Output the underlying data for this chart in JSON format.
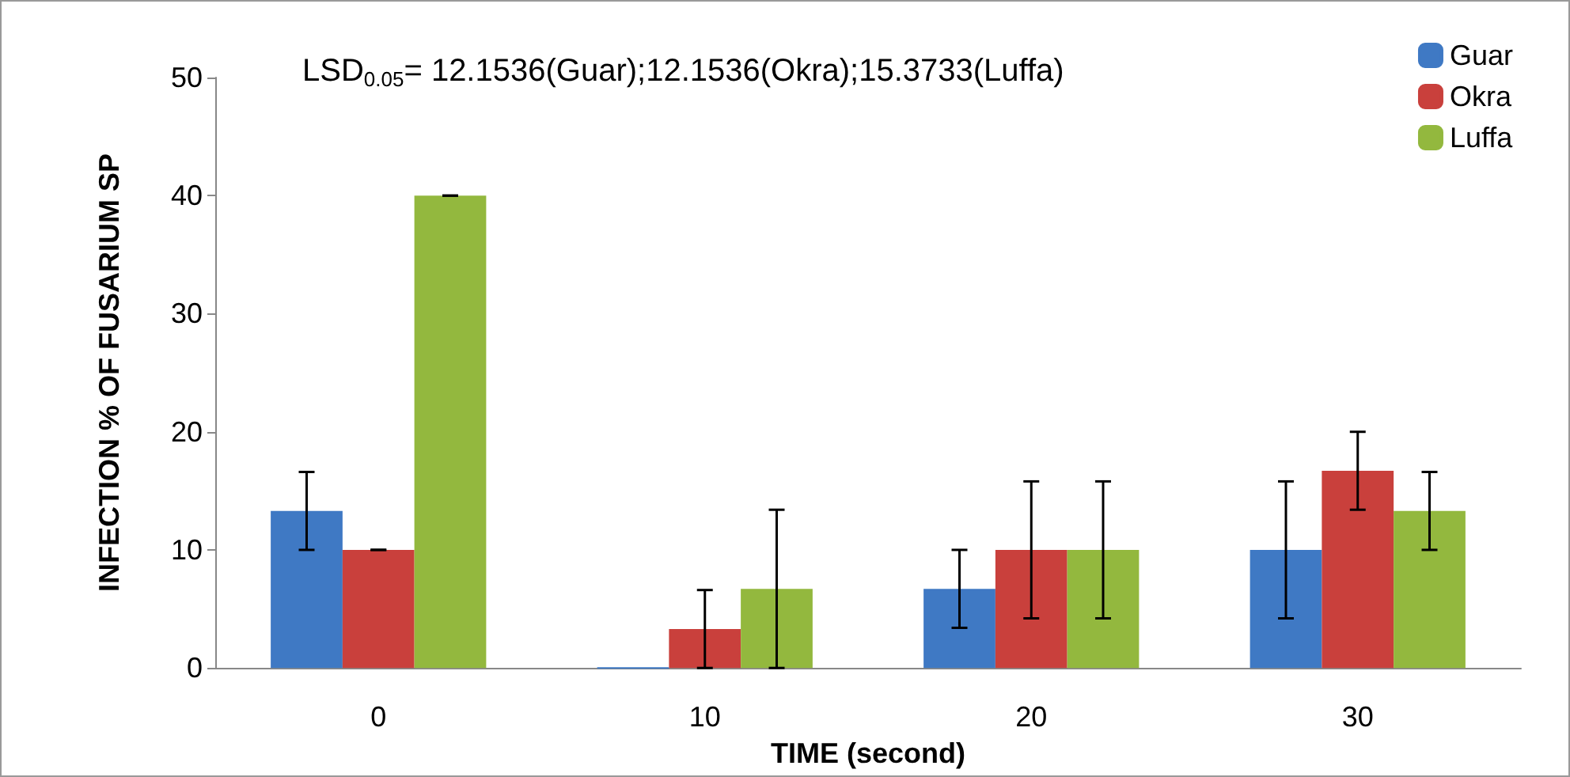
{
  "chart_data": {
    "type": "bar",
    "xlabel": "TIME (second)",
    "ylabel": "INFECTION % OF FUSARIUM SP",
    "annotations": [
      "LSD$_{0.05}$= 12.1536(Guar);12.1536(Okra);15.3733(Luffa)"
    ],
    "categories": [
      "0",
      "10",
      "20",
      "30"
    ],
    "series": [
      {
        "name": "Guar",
        "color": "#3f79c4",
        "values": [
          13.3,
          0,
          6.7,
          10
        ],
        "errors": [
          3.3,
          null,
          3.3,
          5.8
        ]
      },
      {
        "name": "Okra",
        "color": "#c9403c",
        "values": [
          10,
          3.3,
          10,
          16.7
        ],
        "errors": [
          0,
          3.3,
          5.8,
          3.3
        ]
      },
      {
        "name": "Luffa",
        "color": "#93b83e",
        "values": [
          40,
          6.7,
          10,
          13.3
        ],
        "errors": [
          0,
          6.7,
          5.8,
          3.3
        ]
      }
    ],
    "ylim": [
      0,
      50
    ],
    "yticks": [
      0,
      10,
      20,
      30,
      40,
      50
    ],
    "grid": false,
    "legend": "top right"
  }
}
